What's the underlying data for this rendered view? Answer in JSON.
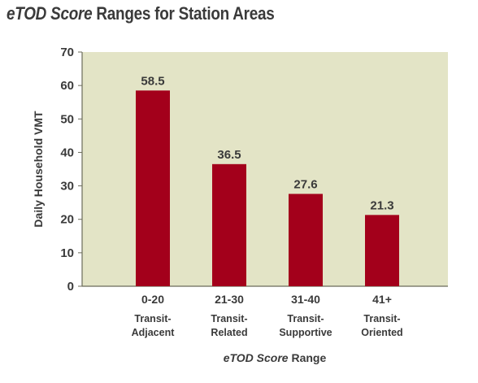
{
  "chart_data": {
    "type": "bar",
    "title_italic": "eTOD Score",
    "title_rest": " Ranges for Station Areas",
    "ylabel": "Daily Household VMT",
    "xlabel_italic": "eTOD Score",
    "xlabel_rest": " Range",
    "ylim": [
      0,
      70
    ],
    "yticks": [
      0,
      10,
      20,
      30,
      40,
      50,
      60,
      70
    ],
    "categories": [
      {
        "range": "0-20",
        "line1": "Transit-",
        "line2": "Adjacent"
      },
      {
        "range": "21-30",
        "line1": "Transit-",
        "line2": "Related"
      },
      {
        "range": "31-40",
        "line1": "Transit-",
        "line2": "Supportive"
      },
      {
        "range": "41+",
        "line1": "Transit-",
        "line2": "Oriented"
      }
    ],
    "values": [
      58.5,
      36.5,
      27.6,
      21.3
    ],
    "data_labels": [
      "58.5",
      "36.5",
      "27.6",
      "21.3"
    ],
    "colors": {
      "plot_background": "#e3e4c6",
      "bar": "#a3001b",
      "axis": "#6b6b5a",
      "text": "#3a3a3a"
    }
  }
}
